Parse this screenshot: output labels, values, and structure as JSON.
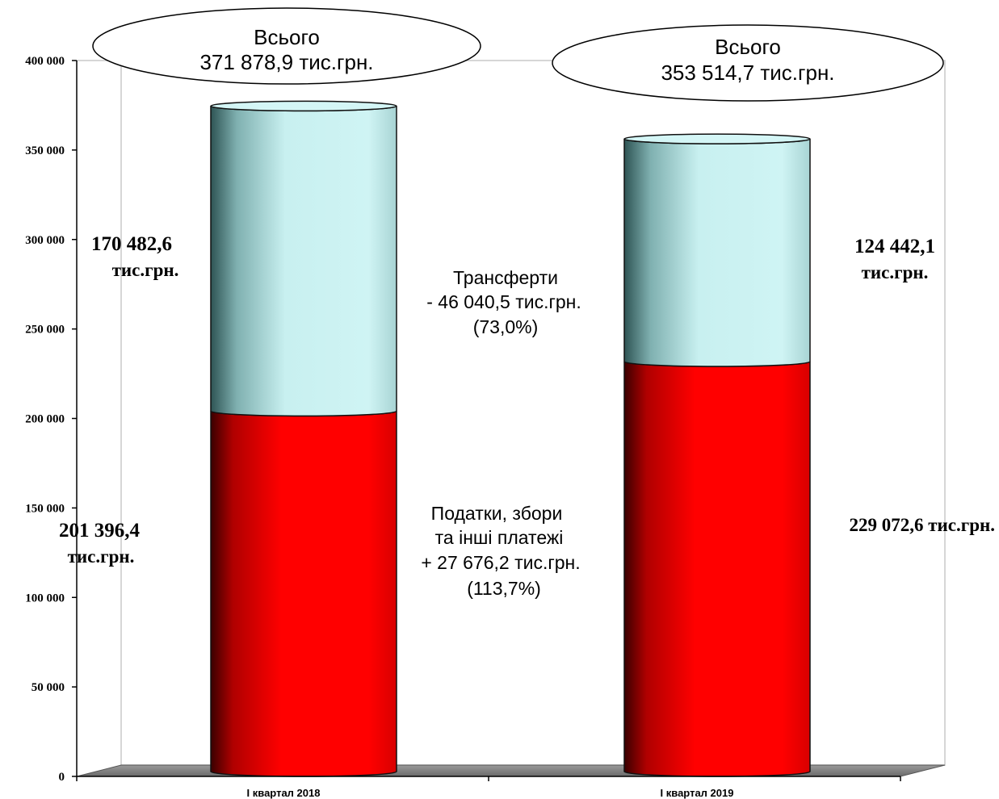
{
  "chart_data": {
    "type": "bar",
    "stacked": true,
    "categories": [
      "І квартал 2018",
      "І квартал 2019"
    ],
    "series": [
      {
        "name": "Податки, збори та інші платежі",
        "values": [
          201396.4,
          229072.6
        ],
        "color": "#ff0000"
      },
      {
        "name": "Трансферти",
        "values": [
          170482.6,
          124442.1
        ],
        "color": "#c8f0f0"
      }
    ],
    "ylim": [
      0,
      400000
    ],
    "yticks": [
      0,
      50000,
      100000,
      150000,
      200000,
      250000,
      300000,
      350000,
      400000
    ],
    "ytick_labels": [
      "0",
      "50 000",
      "100 000",
      "150 000",
      "200 000",
      "250 000",
      "300 000",
      "350 000",
      "400 000"
    ],
    "xlabel": "",
    "ylabel": "",
    "grid": false,
    "legend": "none"
  },
  "labels": {
    "total_2018_line1": "Всього",
    "total_2018_line2": "371 878,9 тис.грн.",
    "total_2019_line1": "Всього",
    "total_2019_line2": "353 514,7 тис.грн.",
    "transfers_2018_line1": "170 482,6",
    "transfers_2018_line2": "тис.грн.",
    "transfers_2019_line1": "124 442,1",
    "transfers_2019_line2": "тис.грн.",
    "taxes_2018_line1": "201 396,4",
    "taxes_2018_line2": "тис.грн.",
    "taxes_2019": "229 072,6 тис.грн.",
    "transfers_change_line1": "Трансферти",
    "transfers_change_line2": "- 46 040,5 тис.грн.",
    "transfers_change_line3": "(73,0%)",
    "taxes_change_line1": "Податки, збори",
    "taxes_change_line2": "та інші платежі",
    "taxes_change_line3": "+ 27 676,2 тис.грн.",
    "taxes_change_line4": "(113,7%)"
  }
}
